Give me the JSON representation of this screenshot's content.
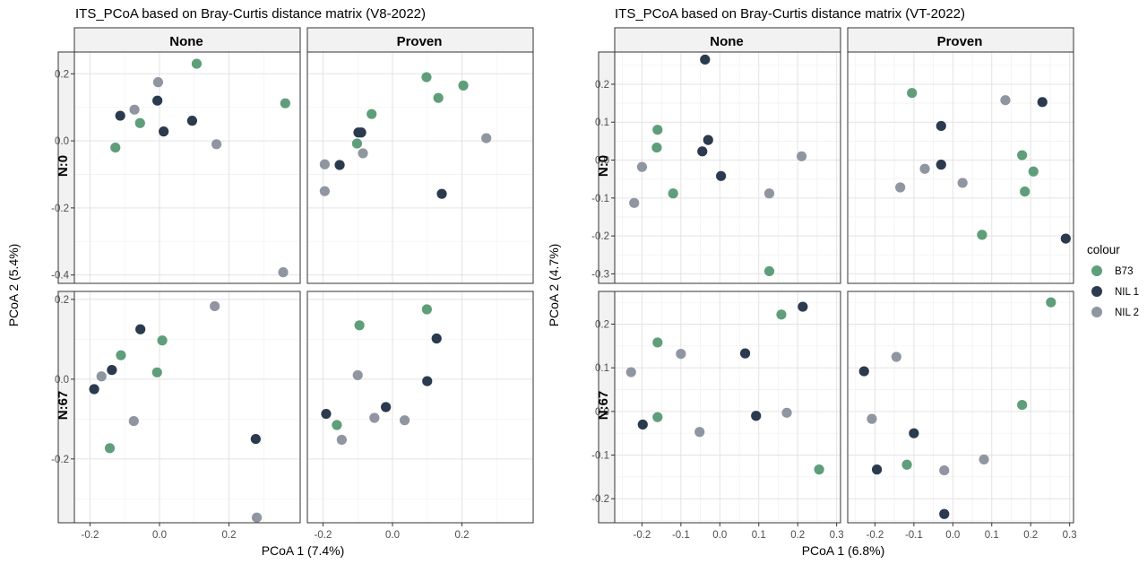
{
  "colors": {
    "B73": "#5f9e7a",
    "NIL 1": "#2b3a4e",
    "NIL 2": "#9096a1",
    "grid_major": "#e3e3e3",
    "grid_minor": "#f1f1f1",
    "strip_fill": "#f2f2f2"
  },
  "legend": {
    "title": "colour",
    "items": [
      "B73",
      "NIL 1",
      "NIL 2"
    ]
  },
  "chart_data": [
    {
      "type": "scatter",
      "title": "ITS_PCoA based on Bray-Curtis distance matrix (V8-2022)",
      "xlabel": "PCoA 1 (7.4%)",
      "ylabel": "PCoA 2 (5.4%)",
      "col_facets": [
        "None",
        "Proven"
      ],
      "row_facets": [
        "N:0",
        "N:67"
      ],
      "xlim": [
        -0.245,
        0.405
      ],
      "xticks": [
        -0.2,
        0.0,
        0.2
      ],
      "xtick_labels": [
        "-0.2",
        "0.0",
        "0.2"
      ],
      "rows": [
        {
          "ylim": [
            -0.425,
            0.265
          ],
          "yticks": [
            -0.4,
            -0.2,
            0.0,
            0.2
          ],
          "ytick_labels": [
            "-0.4",
            "-0.2",
            "0.0",
            "0.2"
          ],
          "panels": [
            {
              "points": [
                {
                  "x": 0.107,
                  "y": 0.23,
                  "group": "B73"
                },
                {
                  "x": 0.362,
                  "y": 0.112,
                  "group": "B73"
                },
                {
                  "x": -0.056,
                  "y": 0.053,
                  "group": "B73"
                },
                {
                  "x": -0.127,
                  "y": -0.02,
                  "group": "B73"
                },
                {
                  "x": -0.113,
                  "y": 0.075,
                  "group": "NIL 1"
                },
                {
                  "x": -0.006,
                  "y": 0.12,
                  "group": "NIL 1"
                },
                {
                  "x": 0.012,
                  "y": 0.028,
                  "group": "NIL 1"
                },
                {
                  "x": 0.094,
                  "y": 0.06,
                  "group": "NIL 1"
                },
                {
                  "x": -0.072,
                  "y": 0.093,
                  "group": "NIL 2"
                },
                {
                  "x": -0.004,
                  "y": 0.175,
                  "group": "NIL 2"
                },
                {
                  "x": 0.164,
                  "y": -0.01,
                  "group": "NIL 2"
                },
                {
                  "x": 0.356,
                  "y": -0.392,
                  "group": "NIL 2"
                }
              ]
            },
            {
              "points": [
                {
                  "x": 0.098,
                  "y": 0.19,
                  "group": "B73"
                },
                {
                  "x": 0.132,
                  "y": 0.128,
                  "group": "B73"
                },
                {
                  "x": 0.204,
                  "y": 0.165,
                  "group": "B73"
                },
                {
                  "x": -0.06,
                  "y": 0.08,
                  "group": "B73"
                },
                {
                  "x": -0.102,
                  "y": -0.008,
                  "group": "B73"
                },
                {
                  "x": -0.098,
                  "y": 0.025,
                  "group": "NIL 1"
                },
                {
                  "x": -0.09,
                  "y": 0.025,
                  "group": "NIL 1"
                },
                {
                  "x": -0.152,
                  "y": -0.072,
                  "group": "NIL 1"
                },
                {
                  "x": 0.142,
                  "y": -0.158,
                  "group": "NIL 1"
                },
                {
                  "x": -0.085,
                  "y": -0.037,
                  "group": "NIL 2"
                },
                {
                  "x": -0.195,
                  "y": -0.07,
                  "group": "NIL 2"
                },
                {
                  "x": -0.195,
                  "y": -0.15,
                  "group": "NIL 2"
                },
                {
                  "x": 0.27,
                  "y": 0.008,
                  "group": "NIL 2"
                }
              ]
            }
          ]
        },
        {
          "ylim": [
            -0.36,
            0.22
          ],
          "yticks": [
            -0.2,
            0.0,
            0.2
          ],
          "ytick_labels": [
            "-0.2",
            "0.0",
            "0.2"
          ],
          "panels": [
            {
              "points": [
                {
                  "x": -0.111,
                  "y": 0.06,
                  "group": "B73"
                },
                {
                  "x": 0.008,
                  "y": 0.097,
                  "group": "B73"
                },
                {
                  "x": -0.007,
                  "y": 0.017,
                  "group": "B73"
                },
                {
                  "x": -0.143,
                  "y": -0.173,
                  "group": "B73"
                },
                {
                  "x": -0.055,
                  "y": 0.125,
                  "group": "NIL 1"
                },
                {
                  "x": -0.137,
                  "y": 0.023,
                  "group": "NIL 1"
                },
                {
                  "x": -0.188,
                  "y": -0.025,
                  "group": "NIL 1"
                },
                {
                  "x": 0.277,
                  "y": -0.15,
                  "group": "NIL 1"
                },
                {
                  "x": 0.159,
                  "y": 0.183,
                  "group": "NIL 2"
                },
                {
                  "x": -0.167,
                  "y": 0.007,
                  "group": "NIL 2"
                },
                {
                  "x": -0.074,
                  "y": -0.105,
                  "group": "NIL 2"
                },
                {
                  "x": 0.28,
                  "y": -0.347,
                  "group": "NIL 2"
                }
              ]
            },
            {
              "points": [
                {
                  "x": -0.095,
                  "y": 0.135,
                  "group": "B73"
                },
                {
                  "x": 0.099,
                  "y": 0.175,
                  "group": "B73"
                },
                {
                  "x": -0.16,
                  "y": -0.115,
                  "group": "B73"
                },
                {
                  "x": 0.127,
                  "y": 0.102,
                  "group": "NIL 1"
                },
                {
                  "x": 0.1,
                  "y": -0.005,
                  "group": "NIL 1"
                },
                {
                  "x": -0.019,
                  "y": -0.07,
                  "group": "NIL 1"
                },
                {
                  "x": -0.191,
                  "y": -0.087,
                  "group": "NIL 1"
                },
                {
                  "x": -0.1,
                  "y": 0.01,
                  "group": "NIL 2"
                },
                {
                  "x": -0.052,
                  "y": -0.097,
                  "group": "NIL 2"
                },
                {
                  "x": 0.035,
                  "y": -0.103,
                  "group": "NIL 2"
                },
                {
                  "x": -0.146,
                  "y": -0.152,
                  "group": "NIL 2"
                }
              ]
            }
          ]
        }
      ]
    },
    {
      "type": "scatter",
      "title": "ITS_PCoA based on Bray-Curtis distance matrix (VT-2022)",
      "xlabel": "PCoA 1 (6.8%)",
      "ylabel": "PCoA 2 (4.7%)",
      "col_facets": [
        "None",
        "Proven"
      ],
      "row_facets": [
        "N:0",
        "N:67"
      ],
      "xlim": [
        -0.27,
        0.31
      ],
      "xticks": [
        -0.2,
        -0.1,
        0.0,
        0.1,
        0.2,
        0.3
      ],
      "xtick_labels": [
        "-0.2",
        "-0.1",
        "0.0",
        "0.1",
        "0.2",
        "0.3"
      ],
      "rows": [
        {
          "ylim": [
            -0.325,
            0.285
          ],
          "yticks": [
            -0.3,
            -0.2,
            -0.1,
            0.0,
            0.1,
            0.2
          ],
          "ytick_labels": [
            "-0.3",
            "-0.2",
            "-0.1",
            "0.0",
            "0.1",
            "0.2"
          ],
          "panels": [
            {
              "points": [
                {
                  "x": -0.16,
                  "y": 0.08,
                  "group": "B73"
                },
                {
                  "x": -0.162,
                  "y": 0.033,
                  "group": "B73"
                },
                {
                  "x": -0.12,
                  "y": -0.088,
                  "group": "B73"
                },
                {
                  "x": 0.127,
                  "y": -0.293,
                  "group": "B73"
                },
                {
                  "x": -0.038,
                  "y": 0.265,
                  "group": "NIL 1"
                },
                {
                  "x": -0.03,
                  "y": 0.053,
                  "group": "NIL 1"
                },
                {
                  "x": -0.045,
                  "y": 0.023,
                  "group": "NIL 1"
                },
                {
                  "x": 0.003,
                  "y": -0.042,
                  "group": "NIL 1"
                },
                {
                  "x": -0.2,
                  "y": -0.018,
                  "group": "NIL 2"
                },
                {
                  "x": -0.22,
                  "y": -0.113,
                  "group": "NIL 2"
                },
                {
                  "x": 0.127,
                  "y": -0.088,
                  "group": "NIL 2"
                },
                {
                  "x": 0.21,
                  "y": 0.01,
                  "group": "NIL 2"
                }
              ]
            },
            {
              "points": [
                {
                  "x": -0.105,
                  "y": 0.177,
                  "group": "B73"
                },
                {
                  "x": 0.178,
                  "y": 0.013,
                  "group": "B73"
                },
                {
                  "x": 0.207,
                  "y": -0.03,
                  "group": "B73"
                },
                {
                  "x": 0.185,
                  "y": -0.083,
                  "group": "B73"
                },
                {
                  "x": 0.075,
                  "y": -0.197,
                  "group": "B73"
                },
                {
                  "x": -0.03,
                  "y": 0.09,
                  "group": "NIL 1"
                },
                {
                  "x": 0.23,
                  "y": 0.153,
                  "group": "NIL 1"
                },
                {
                  "x": -0.03,
                  "y": -0.012,
                  "group": "NIL 1"
                },
                {
                  "x": 0.29,
                  "y": -0.207,
                  "group": "NIL 1"
                },
                {
                  "x": 0.135,
                  "y": 0.158,
                  "group": "NIL 2"
                },
                {
                  "x": -0.072,
                  "y": -0.023,
                  "group": "NIL 2"
                },
                {
                  "x": -0.135,
                  "y": -0.072,
                  "group": "NIL 2"
                },
                {
                  "x": 0.025,
                  "y": -0.06,
                  "group": "NIL 2"
                }
              ]
            }
          ]
        },
        {
          "ylim": [
            -0.255,
            0.275
          ],
          "yticks": [
            -0.2,
            -0.1,
            0.0,
            0.1,
            0.2
          ],
          "ytick_labels": [
            "-0.2",
            "-0.1",
            "0.0",
            "0.1",
            "0.2"
          ],
          "panels": [
            {
              "points": [
                {
                  "x": 0.158,
                  "y": 0.222,
                  "group": "B73"
                },
                {
                  "x": -0.16,
                  "y": 0.158,
                  "group": "B73"
                },
                {
                  "x": -0.16,
                  "y": -0.013,
                  "group": "B73"
                },
                {
                  "x": 0.255,
                  "y": -0.133,
                  "group": "B73"
                },
                {
                  "x": 0.213,
                  "y": 0.24,
                  "group": "NIL 1"
                },
                {
                  "x": 0.065,
                  "y": 0.133,
                  "group": "NIL 1"
                },
                {
                  "x": 0.093,
                  "y": -0.01,
                  "group": "NIL 1"
                },
                {
                  "x": -0.198,
                  "y": -0.03,
                  "group": "NIL 1"
                },
                {
                  "x": -0.228,
                  "y": 0.09,
                  "group": "NIL 2"
                },
                {
                  "x": -0.1,
                  "y": 0.132,
                  "group": "NIL 2"
                },
                {
                  "x": 0.172,
                  "y": -0.003,
                  "group": "NIL 2"
                },
                {
                  "x": -0.052,
                  "y": -0.047,
                  "group": "NIL 2"
                }
              ]
            },
            {
              "points": [
                {
                  "x": 0.252,
                  "y": 0.25,
                  "group": "B73"
                },
                {
                  "x": 0.178,
                  "y": 0.015,
                  "group": "B73"
                },
                {
                  "x": -0.118,
                  "y": -0.122,
                  "group": "B73"
                },
                {
                  "x": -0.228,
                  "y": 0.092,
                  "group": "NIL 1"
                },
                {
                  "x": -0.1,
                  "y": -0.05,
                  "group": "NIL 1"
                },
                {
                  "x": -0.195,
                  "y": -0.133,
                  "group": "NIL 1"
                },
                {
                  "x": -0.022,
                  "y": -0.235,
                  "group": "NIL 1"
                },
                {
                  "x": -0.145,
                  "y": 0.125,
                  "group": "NIL 2"
                },
                {
                  "x": -0.208,
                  "y": -0.017,
                  "group": "NIL 2"
                },
                {
                  "x": 0.08,
                  "y": -0.11,
                  "group": "NIL 2"
                },
                {
                  "x": -0.022,
                  "y": -0.135,
                  "group": "NIL 2"
                }
              ]
            }
          ]
        }
      ]
    }
  ]
}
